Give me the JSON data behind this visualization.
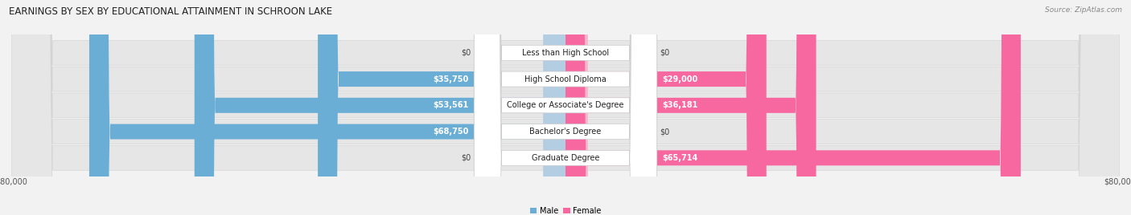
{
  "title": "EARNINGS BY SEX BY EDUCATIONAL ATTAINMENT IN SCHROON LAKE",
  "source": "Source: ZipAtlas.com",
  "categories": [
    "Less than High School",
    "High School Diploma",
    "College or Associate's Degree",
    "Bachelor's Degree",
    "Graduate Degree"
  ],
  "male_values": [
    0,
    35750,
    53561,
    68750,
    0
  ],
  "female_values": [
    0,
    29000,
    36181,
    0,
    65714
  ],
  "male_labels": [
    "$0",
    "$35,750",
    "$53,561",
    "$68,750",
    "$0"
  ],
  "female_labels": [
    "$0",
    "$29,000",
    "$36,181",
    "$0",
    "$65,714"
  ],
  "male_color": "#6aaed6",
  "female_color": "#f768a1",
  "male_color_zero": "#b3cde3",
  "female_color_zero": "#fbb4ca",
  "max_value": 80000,
  "bg_color": "#f2f2f2",
  "row_bg_color": "#e4e4e4",
  "row_bg_color2": "#ebebeb",
  "title_fontsize": 8.5,
  "label_fontsize": 7.0,
  "cat_fontsize": 7.0,
  "tick_fontsize": 7.0,
  "source_fontsize": 6.5
}
